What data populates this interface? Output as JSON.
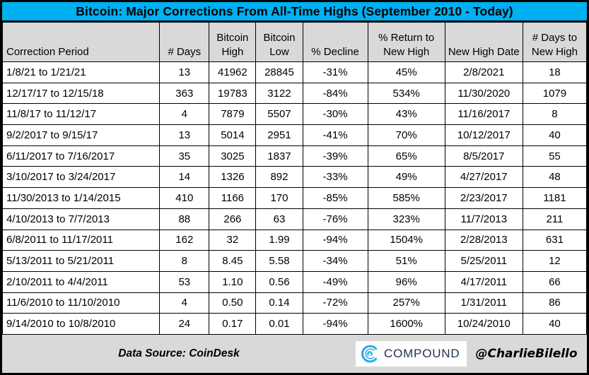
{
  "title": "Bitcoin: Major Corrections From All-Time Highs (September 2010 - Today)",
  "chart_data": {
    "type": "table",
    "columns": [
      "Correction Period",
      "# Days",
      "Bitcoin High",
      "Bitcoin Low",
      "% Decline",
      "% Return to New High",
      "New High Date",
      "# Days to New High"
    ],
    "rows": [
      [
        "1/8/21 to 1/21/21",
        "13",
        "41962",
        "28845",
        "-31%",
        "45%",
        "2/8/2021",
        "18"
      ],
      [
        "12/17/17 to 12/15/18",
        "363",
        "19783",
        "3122",
        "-84%",
        "534%",
        "11/30/2020",
        "1079"
      ],
      [
        "11/8/17 to 11/12/17",
        "4",
        "7879",
        "5507",
        "-30%",
        "43%",
        "11/16/2017",
        "8"
      ],
      [
        "9/2/2017 to 9/15/17",
        "13",
        "5014",
        "2951",
        "-41%",
        "70%",
        "10/12/2017",
        "40"
      ],
      [
        "6/11/2017 to 7/16/2017",
        "35",
        "3025",
        "1837",
        "-39%",
        "65%",
        "8/5/2017",
        "55"
      ],
      [
        "3/10/2017 to 3/24/2017",
        "14",
        "1326",
        "892",
        "-33%",
        "49%",
        "4/27/2017",
        "48"
      ],
      [
        "11/30/2013 to 1/14/2015",
        "410",
        "1166",
        "170",
        "-85%",
        "585%",
        "2/23/2017",
        "1181"
      ],
      [
        "4/10/2013 to 7/7/2013",
        "88",
        "266",
        "63",
        "-76%",
        "323%",
        "11/7/2013",
        "211"
      ],
      [
        "6/8/2011 to 11/17/2011",
        "162",
        "32",
        "1.99",
        "-94%",
        "1504%",
        "2/28/2013",
        "631"
      ],
      [
        "5/13/2011 to 5/21/2011",
        "8",
        "8.45",
        "5.58",
        "-34%",
        "51%",
        "5/25/2011",
        "12"
      ],
      [
        "2/10/2011 to 4/4/2011",
        "53",
        "1.10",
        "0.56",
        "-49%",
        "96%",
        "4/17/2011",
        "66"
      ],
      [
        "11/6/2010 to 11/10/2010",
        "4",
        "0.50",
        "0.14",
        "-72%",
        "257%",
        "1/31/2011",
        "86"
      ],
      [
        "9/14/2010 to 10/8/2010",
        "24",
        "0.17",
        "0.01",
        "-94%",
        "1600%",
        "10/24/2010",
        "40"
      ]
    ]
  },
  "footer": {
    "data_source": "Data Source: CoinDesk",
    "logo_text": "COMPOUND",
    "handle": "@CharlieBilello",
    "logo_icon": "compound-c-droplet-icon"
  },
  "colors": {
    "title_bg": "#00b0f0",
    "header_bg": "#d9d9d9",
    "footer_bg": "#d9d9d9",
    "border": "#000000",
    "logo_cyan": "#29abe2",
    "logo_navy": "#1f2e4e"
  }
}
